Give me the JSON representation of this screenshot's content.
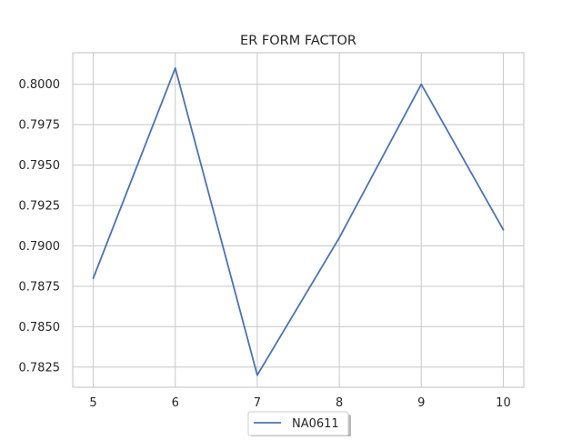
{
  "chart_data": {
    "type": "line",
    "title": "ER FORM FACTOR",
    "xlabel": "",
    "ylabel": "",
    "x": [
      5,
      6,
      7,
      8,
      9,
      10
    ],
    "series": [
      {
        "name": "NA0611",
        "values": [
          0.788,
          0.801,
          0.782,
          0.7905,
          0.8,
          0.791
        ],
        "color": "#4c72b0"
      }
    ],
    "xticks": [
      "5",
      "6",
      "7",
      "8",
      "9",
      "10"
    ],
    "yticks": [
      "0.7825",
      "0.7850",
      "0.7875",
      "0.7900",
      "0.7925",
      "0.7950",
      "0.7975",
      "0.8000"
    ],
    "xlim": [
      4.75,
      10.25
    ],
    "ylim": [
      0.78125,
      0.80195
    ],
    "grid": true,
    "legend_position": "bottom-center",
    "colors": {
      "grid": "#cccccc",
      "axes_edge": "#cccccc",
      "text": "#262626",
      "background": "#ffffff"
    }
  }
}
